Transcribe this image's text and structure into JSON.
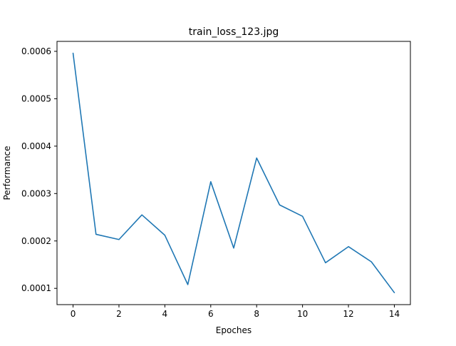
{
  "chart_data": {
    "type": "line",
    "title": "train_loss_123.jpg",
    "xlabel": "Epoches",
    "ylabel": "Performance",
    "x": [
      0,
      1,
      2,
      3,
      4,
      5,
      6,
      7,
      8,
      9,
      10,
      11,
      12,
      13,
      14
    ],
    "series": [
      {
        "values": [
          0.000596,
          0.000214,
          0.000203,
          0.000255,
          0.000212,
          0.000108,
          0.000325,
          0.000185,
          0.000375,
          0.000276,
          0.000252,
          0.000154,
          0.000188,
          0.000156,
          9.1e-05
        ],
        "color": "#1f77b4"
      }
    ],
    "xlim": [
      -0.7,
      14.7
    ],
    "ylim": [
      6.57e-05,
      0.000621
    ],
    "xticks": [
      0,
      2,
      4,
      6,
      8,
      10,
      12,
      14
    ],
    "xtick_labels": [
      "0",
      "2",
      "4",
      "6",
      "8",
      "10",
      "12",
      "14"
    ],
    "yticks": [
      0.0001,
      0.0002,
      0.0003,
      0.0004,
      0.0005,
      0.0006
    ],
    "ytick_labels": [
      "0.0001",
      "0.0002",
      "0.0003",
      "0.0004",
      "0.0005",
      "0.0006"
    ],
    "grid": false,
    "legend": "none"
  }
}
